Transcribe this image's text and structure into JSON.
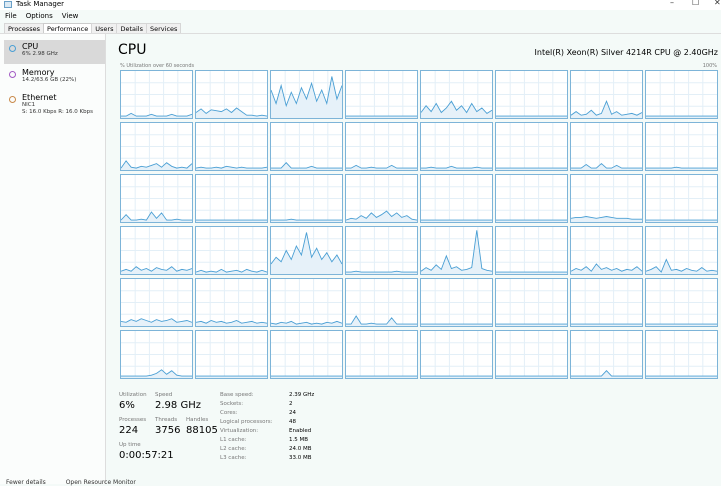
{
  "window": {
    "title": "Task Manager",
    "minimize": "–",
    "maximize": "☐",
    "close": "✕"
  },
  "menu": [
    "File",
    "Options",
    "View"
  ],
  "tabs": [
    "Processes",
    "Performance",
    "Users",
    "Details",
    "Services"
  ],
  "active_tab": "Performance",
  "sidebar": [
    {
      "name": "CPU",
      "sub": "6% 2.98 GHz",
      "color": "#4a9fd4",
      "selected": true
    },
    {
      "name": "Memory",
      "sub": "14.2/63.6 GB (22%)",
      "color": "#a35bc4"
    },
    {
      "name": "Ethernet",
      "sub": "NIC1",
      "sub2": "S: 16.0 Kbps R: 16.0 Kbps",
      "color": "#c98a4a"
    }
  ],
  "header": {
    "title": "CPU",
    "model": "Intel(R) Xeon(R) Silver 4214R CPU @ 2.40GHz",
    "subtitle": "% Utilization over 60 seconds",
    "max_label": "100%"
  },
  "chart_data": {
    "type": "line",
    "ylim": [
      0,
      100
    ],
    "grid": true,
    "line_color": "#4a9fd4",
    "cores": [
      [
        2,
        2,
        8,
        2,
        2,
        2,
        6,
        2,
        2,
        2,
        6,
        2,
        2,
        2,
        6
      ],
      [
        10,
        18,
        8,
        16,
        14,
        12,
        18,
        10,
        20,
        12,
        4,
        4,
        2,
        4,
        2
      ],
      [
        60,
        30,
        70,
        25,
        55,
        30,
        65,
        40,
        75,
        35,
        60,
        30,
        90,
        40,
        70
      ],
      [
        2,
        2,
        2,
        2,
        2,
        2,
        2,
        2,
        2,
        2,
        2,
        2,
        2,
        2,
        2
      ],
      [
        10,
        25,
        12,
        30,
        10,
        20,
        35,
        15,
        25,
        10,
        30,
        12,
        20,
        8,
        15
      ],
      [
        2,
        2,
        2,
        2,
        2,
        2,
        2,
        2,
        2,
        2,
        2,
        2,
        2,
        2,
        2
      ],
      [
        4,
        12,
        4,
        6,
        15,
        4,
        8,
        35,
        6,
        12,
        4,
        6,
        8,
        4,
        10
      ],
      [
        2,
        2,
        2,
        2,
        2,
        2,
        2,
        2,
        2,
        2,
        2,
        2,
        2,
        2,
        2
      ],
      [
        2,
        18,
        4,
        2,
        6,
        4,
        8,
        12,
        4,
        14,
        6,
        2,
        4,
        2,
        12
      ],
      [
        2,
        4,
        2,
        2,
        4,
        2,
        6,
        4,
        2,
        4,
        2,
        2,
        2,
        2,
        4
      ],
      [
        2,
        2,
        2,
        14,
        2,
        2,
        2,
        2,
        6,
        2,
        2,
        2,
        2,
        2,
        2
      ],
      [
        2,
        2,
        8,
        2,
        2,
        4,
        2,
        2,
        2,
        8,
        2,
        2,
        2,
        2,
        2
      ],
      [
        2,
        2,
        4,
        2,
        2,
        2,
        6,
        2,
        2,
        2,
        2,
        4,
        2,
        2,
        2
      ],
      [
        2,
        2,
        2,
        2,
        2,
        2,
        2,
        2,
        2,
        2,
        2,
        2,
        2,
        2,
        2
      ],
      [
        2,
        2,
        2,
        10,
        2,
        2,
        12,
        2,
        2,
        8,
        2,
        2,
        2,
        2,
        2
      ],
      [
        2,
        2,
        2,
        2,
        2,
        2,
        4,
        2,
        2,
        2,
        2,
        2,
        2,
        2,
        2
      ],
      [
        2,
        14,
        2,
        2,
        4,
        2,
        20,
        6,
        18,
        2,
        2,
        4,
        2,
        2,
        2
      ],
      [
        2,
        2,
        2,
        2,
        2,
        2,
        2,
        2,
        2,
        2,
        2,
        2,
        2,
        2,
        2
      ],
      [
        2,
        2,
        2,
        2,
        4,
        2,
        2,
        2,
        2,
        2,
        2,
        2,
        2,
        2,
        2
      ],
      [
        2,
        6,
        4,
        12,
        6,
        18,
        8,
        14,
        22,
        10,
        18,
        8,
        12,
        4,
        2
      ],
      [
        2,
        2,
        2,
        2,
        2,
        2,
        2,
        2,
        2,
        2,
        2,
        2,
        2,
        2,
        2
      ],
      [
        2,
        2,
        2,
        2,
        2,
        2,
        2,
        2,
        2,
        2,
        2,
        2,
        2,
        2,
        2
      ],
      [
        6,
        8,
        8,
        10,
        8,
        6,
        8,
        10,
        8,
        6,
        6,
        6,
        4,
        4,
        4
      ],
      [
        2,
        2,
        2,
        2,
        2,
        2,
        2,
        2,
        2,
        2,
        2,
        2,
        2,
        2,
        2
      ],
      [
        4,
        8,
        4,
        14,
        6,
        10,
        4,
        12,
        8,
        6,
        14,
        4,
        8,
        6,
        10
      ],
      [
        2,
        6,
        2,
        4,
        2,
        8,
        2,
        4,
        6,
        2,
        8,
        4,
        2,
        6,
        2
      ],
      [
        20,
        35,
        25,
        50,
        30,
        60,
        40,
        90,
        35,
        55,
        30,
        45,
        25,
        40,
        20
      ],
      [
        2,
        2,
        4,
        2,
        2,
        2,
        2,
        2,
        2,
        2,
        4,
        2,
        2,
        2,
        2
      ],
      [
        4,
        12,
        6,
        18,
        8,
        38,
        10,
        14,
        6,
        8,
        12,
        95,
        10,
        6,
        4
      ],
      [
        2,
        2,
        2,
        2,
        2,
        2,
        2,
        2,
        2,
        2,
        2,
        2,
        2,
        2,
        2
      ],
      [
        4,
        10,
        6,
        14,
        4,
        20,
        8,
        12,
        6,
        10,
        4,
        8,
        6,
        14,
        4
      ],
      [
        4,
        8,
        14,
        2,
        30,
        6,
        8,
        4,
        10,
        6,
        4,
        12,
        4,
        6,
        4
      ],
      [
        8,
        6,
        12,
        8,
        14,
        10,
        6,
        12,
        8,
        10,
        14,
        6,
        8,
        10,
        6
      ],
      [
        6,
        8,
        4,
        10,
        6,
        8,
        4,
        6,
        10,
        4,
        6,
        8,
        4,
        6,
        4
      ],
      [
        4,
        2,
        6,
        4,
        8,
        2,
        4,
        6,
        2,
        4,
        2,
        6,
        4,
        8,
        4
      ],
      [
        2,
        2,
        20,
        2,
        2,
        4,
        2,
        2,
        2,
        16,
        2,
        2,
        2,
        2,
        2
      ],
      [
        2,
        2,
        2,
        2,
        2,
        2,
        2,
        2,
        2,
        2,
        2,
        2,
        2,
        2,
        2
      ],
      [
        2,
        2,
        2,
        2,
        2,
        2,
        2,
        2,
        2,
        2,
        2,
        2,
        2,
        2,
        2
      ],
      [
        2,
        2,
        2,
        2,
        2,
        2,
        2,
        2,
        2,
        2,
        2,
        2,
        2,
        2,
        2
      ],
      [
        2,
        2,
        2,
        2,
        2,
        2,
        2,
        2,
        2,
        2,
        2,
        2,
        2,
        2,
        2
      ],
      [
        2,
        2,
        2,
        2,
        2,
        2,
        4,
        8,
        16,
        6,
        14,
        4,
        2,
        2,
        2
      ],
      [
        2,
        2,
        2,
        2,
        2,
        2,
        2,
        2,
        2,
        2,
        2,
        2,
        2,
        2,
        2
      ],
      [
        2,
        2,
        2,
        2,
        2,
        2,
        2,
        2,
        2,
        2,
        2,
        2,
        2,
        2,
        2
      ],
      [
        2,
        2,
        2,
        2,
        2,
        2,
        2,
        2,
        2,
        2,
        2,
        2,
        2,
        2,
        2
      ],
      [
        2,
        2,
        2,
        2,
        2,
        2,
        2,
        2,
        2,
        2,
        2,
        2,
        2,
        2,
        2
      ],
      [
        2,
        2,
        2,
        2,
        2,
        2,
        2,
        2,
        2,
        2,
        2,
        2,
        2,
        2,
        2
      ],
      [
        2,
        2,
        2,
        2,
        2,
        2,
        2,
        14,
        2,
        2,
        2,
        2,
        2,
        2,
        2
      ],
      [
        2,
        2,
        2,
        2,
        2,
        2,
        2,
        2,
        2,
        2,
        2,
        2,
        2,
        2,
        2
      ]
    ]
  },
  "stats": {
    "utilization": {
      "label": "Utilization",
      "value": "6%"
    },
    "speed": {
      "label": "Speed",
      "value": "2.98 GHz"
    },
    "processes": {
      "label": "Processes",
      "value": "224"
    },
    "threads": {
      "label": "Threads",
      "value": "3756"
    },
    "handles": {
      "label": "Handles",
      "value": "88105"
    },
    "uptime": {
      "label": "Up time",
      "value": "0:00:57:21"
    }
  },
  "specs": [
    {
      "k": "Base speed:",
      "v": "2.39 GHz"
    },
    {
      "k": "Sockets:",
      "v": "2"
    },
    {
      "k": "Cores:",
      "v": "24"
    },
    {
      "k": "Logical processors:",
      "v": "48"
    },
    {
      "k": "Virtualization:",
      "v": "Enabled"
    },
    {
      "k": "L1 cache:",
      "v": "1.5 MB"
    },
    {
      "k": "L2 cache:",
      "v": "24.0 MB"
    },
    {
      "k": "L3 cache:",
      "v": "33.0 MB"
    }
  ],
  "footer": {
    "fewer": "Fewer details",
    "monitor": "Open Resource Monitor"
  }
}
